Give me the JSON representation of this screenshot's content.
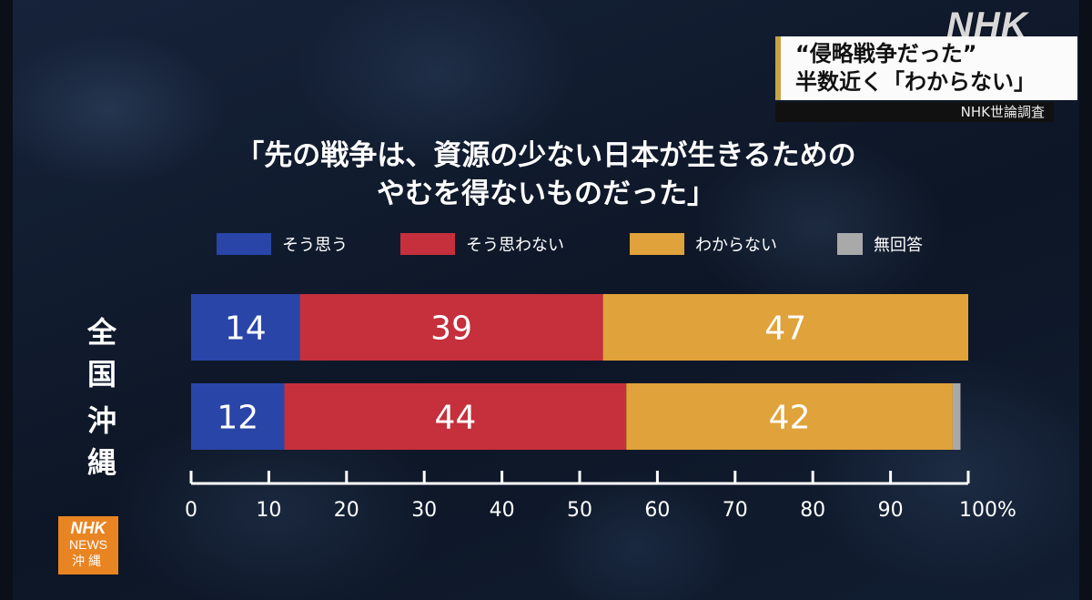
{
  "broadcaster_logo": "NHK",
  "headline": {
    "line1": "“侵略戦争だった”",
    "line2": "半数近く「わからない」",
    "source": "NHK世論調査"
  },
  "question": {
    "line1": "「先の戦争は、資源の少ない日本が生きるための",
    "line2": "やむを得ないものだった」"
  },
  "news_badge": {
    "line1": "NHK",
    "line2": "NEWS",
    "line3": "沖縄"
  },
  "colors": {
    "agree": "#2a45a8",
    "disagree": "#c5303c",
    "unknown": "#e0a23a",
    "no_answer": "#a9a9a9",
    "brand_orange": "#e98422"
  },
  "chart_data": {
    "type": "bar",
    "orientation": "horizontal",
    "stacked": true,
    "categories": [
      "全国",
      "沖縄"
    ],
    "category_labels": [
      "全 国",
      "沖 縄"
    ],
    "series": [
      {
        "name": "そう思う",
        "values": [
          14,
          12
        ],
        "labels": [
          "14",
          "12"
        ],
        "color": "#2a45a8"
      },
      {
        "name": "そう思わない",
        "values": [
          39,
          44
        ],
        "labels": [
          "39",
          "44"
        ],
        "color": "#c5303c"
      },
      {
        "name": "わからない",
        "values": [
          47,
          42
        ],
        "labels": [
          "47",
          "42"
        ],
        "color": "#e0a23a"
      },
      {
        "name": "無回答",
        "values": [
          0,
          1
        ],
        "labels": [
          "",
          ""
        ],
        "color": "#a9a9a9"
      }
    ],
    "xlim": [
      0,
      100
    ],
    "ticks": [
      "0",
      "10",
      "20",
      "30",
      "40",
      "50",
      "60",
      "70",
      "80",
      "90",
      "100%"
    ],
    "legend_position": "top",
    "grid": false
  }
}
